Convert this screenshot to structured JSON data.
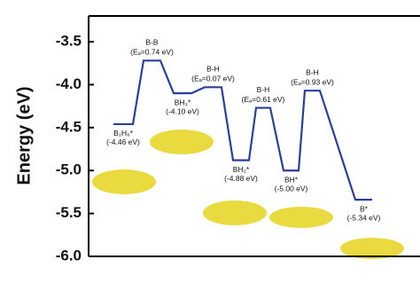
{
  "chart_data": {
    "type": "line",
    "y_label": "Energy (eV)",
    "ylim": [
      -6.0,
      -3.2
    ],
    "yticks": [
      {
        "value": -3.5,
        "label": "-3.5"
      },
      {
        "value": -4.0,
        "label": "-4.0"
      },
      {
        "value": -4.5,
        "label": "-4.5"
      },
      {
        "value": -5.0,
        "label": "-5.0"
      },
      {
        "value": -5.5,
        "label": "-5.5"
      },
      {
        "value": -6.0,
        "label": "-6.0"
      }
    ],
    "color": "#2b3f9e",
    "state_labels": [
      "B₂H₆*",
      "B-B",
      "BH₃*",
      "B-H",
      "BH₂*",
      "B-H",
      "BH*",
      "B-H",
      "B*"
    ],
    "barrier_labels": [
      null,
      "(Eₐ=0.74 eV)",
      null,
      "(Eₐ=0.07 eV)",
      null,
      "(Eₐ=0.61 eV)",
      null,
      "(Eₐ=0.93 eV)",
      null
    ],
    "values": [
      -4.46,
      -3.72,
      -4.1,
      -4.03,
      -4.88,
      -4.27,
      -5.0,
      -4.07,
      -5.34
    ],
    "value_labels": [
      "(-4.46 eV)",
      null,
      "(-4.10 eV)",
      null,
      "(-4.88 eV)",
      null,
      "(-5.00 eV)",
      null,
      "(-5.34 eV)"
    ]
  }
}
